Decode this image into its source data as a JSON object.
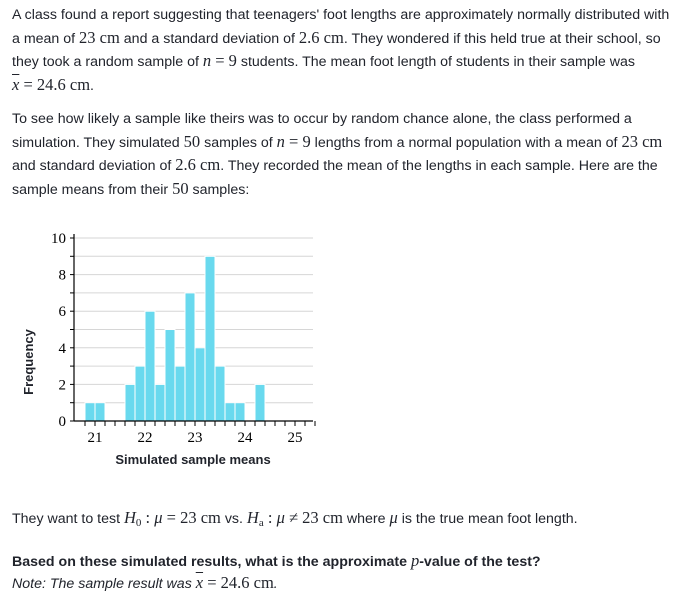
{
  "problem": {
    "p1": {
      "t1": "A class found a report suggesting that teenagers' foot lengths are approximately normally distributed with a mean of ",
      "m1": "23 cm",
      "t2": " and a standard deviation of ",
      "m2": "2.6 cm",
      "t3": ". They wondered if this held true at their school, so they took a random sample of ",
      "m3": "n",
      "m4": " = 9",
      "t4": " students. The mean foot length of students in their sample was ",
      "m5": "x",
      "m6": " = 24.6 cm",
      "t5": "."
    },
    "p2": {
      "t1": "To see how likely a sample like theirs was to occur by random chance alone, the class performed a simulation. They simulated ",
      "m1": "50",
      "t2": " samples of ",
      "m2": "n",
      "m3": " = 9",
      "t3": " lengths from a normal population with a mean of ",
      "m4": "23 cm",
      "t4": " and standard deviation of ",
      "m5": "2.6 cm",
      "t5": ". They recorded the mean of the lengths in each sample. Here are the sample means from their ",
      "m6": "50",
      "t6": " samples:"
    },
    "hypothesis": {
      "t1": "They want to test ",
      "h0": "H",
      "h0sub": "0",
      "m1": " : ",
      "mu1": "μ",
      "m2": " = 23 cm",
      "t2": " vs. ",
      "ha": "H",
      "hasub": "a",
      "m3": " : ",
      "mu2": "μ",
      "m4": " ≠ 23 cm",
      "t3": " where ",
      "mu3": "μ",
      "t4": " is the true mean foot length."
    },
    "question": {
      "t1": "Based on these simulated results, what is the approximate ",
      "p": "p",
      "t2": "-value of the test?"
    },
    "note": {
      "t1": "Note: The sample result was ",
      "m1": "x",
      "m2": " = 24.6 cm",
      "t2": "."
    }
  },
  "chart_data": {
    "type": "bar",
    "xlabel": "Simulated sample means",
    "ylabel": "Frequency",
    "ylim": [
      0,
      10
    ],
    "yticks": [
      0,
      2,
      4,
      6,
      8,
      10
    ],
    "xticks": [
      21,
      22,
      23,
      24,
      25
    ],
    "bin_width": 0.2,
    "bins": [
      {
        "start": 20.8,
        "count": 1
      },
      {
        "start": 21.0,
        "count": 1
      },
      {
        "start": 21.2,
        "count": 0
      },
      {
        "start": 21.4,
        "count": 0
      },
      {
        "start": 21.6,
        "count": 2
      },
      {
        "start": 21.8,
        "count": 3
      },
      {
        "start": 22.0,
        "count": 6
      },
      {
        "start": 22.2,
        "count": 2
      },
      {
        "start": 22.4,
        "count": 5
      },
      {
        "start": 22.6,
        "count": 3
      },
      {
        "start": 22.8,
        "count": 7
      },
      {
        "start": 23.0,
        "count": 4
      },
      {
        "start": 23.2,
        "count": 9
      },
      {
        "start": 23.4,
        "count": 3
      },
      {
        "start": 23.6,
        "count": 1
      },
      {
        "start": 23.8,
        "count": 1
      },
      {
        "start": 24.0,
        "count": 0
      },
      {
        "start": 24.2,
        "count": 2
      }
    ],
    "grid": true,
    "bar_color": "#69d9ee"
  }
}
